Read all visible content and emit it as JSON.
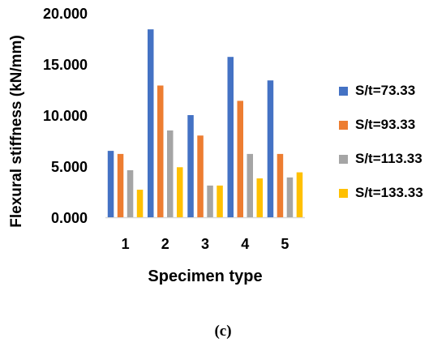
{
  "chart_data": {
    "type": "bar",
    "title": "",
    "xlabel": "Specimen type",
    "ylabel": "Flexural stiffness (kN/mm)",
    "ylim": [
      0,
      20
    ],
    "yticks": [
      "0.000",
      "5.000",
      "10.000",
      "15.000",
      "20.000"
    ],
    "categories": [
      "1",
      "2",
      "3",
      "4",
      "5"
    ],
    "series": [
      {
        "name": "S/t=73.33",
        "color": "#4472C4",
        "values": [
          6.5,
          18.4,
          10.0,
          15.7,
          13.4
        ]
      },
      {
        "name": "S/t=93.33",
        "color": "#ED7D31",
        "values": [
          6.2,
          12.9,
          8.0,
          11.4,
          6.2
        ]
      },
      {
        "name": "S/t=113.33",
        "color": "#A5A5A5",
        "values": [
          4.6,
          8.5,
          3.1,
          6.2,
          3.9
        ]
      },
      {
        "name": "S/t=133.33",
        "color": "#FFC000",
        "values": [
          2.7,
          4.9,
          3.1,
          3.8,
          4.4
        ]
      }
    ],
    "grid": false,
    "legend": "right"
  },
  "caption": "(c)"
}
